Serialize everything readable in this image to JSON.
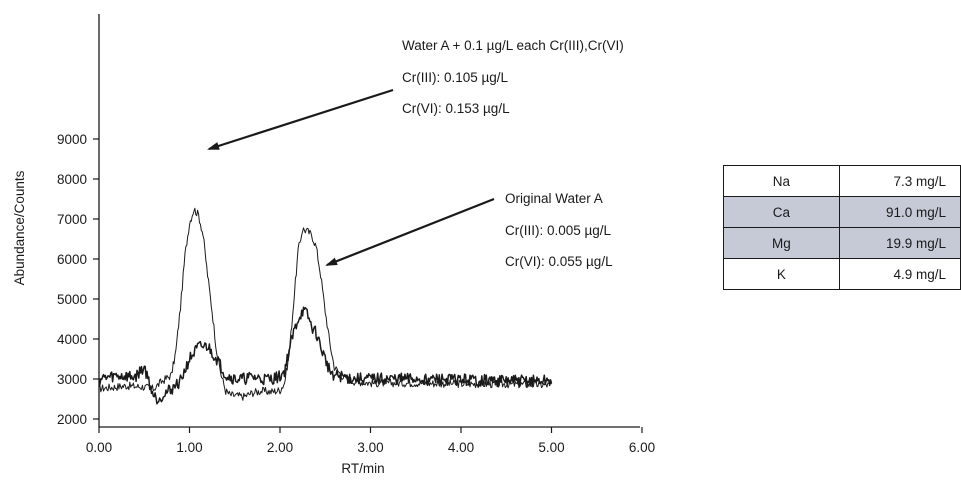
{
  "chart_data": {
    "type": "line",
    "xlabel": "RT/min",
    "ylabel": "Abundance/Counts",
    "xlim": [
      0,
      6
    ],
    "ylim": [
      1800,
      9600
    ],
    "xticks": [
      "0.00",
      "1.00",
      "2.00",
      "3.00",
      "4.00",
      "5.00",
      "6.00"
    ],
    "yticks": [
      "2000",
      "3000",
      "4000",
      "5000",
      "6000",
      "7000",
      "8000",
      "9000"
    ],
    "grid": false,
    "series": [
      {
        "key": "spiked",
        "x": [
          0.0,
          0.3,
          0.5,
          0.6,
          0.7,
          0.8,
          0.85,
          0.9,
          0.95,
          1.0,
          1.05,
          1.1,
          1.15,
          1.2,
          1.25,
          1.3,
          1.35,
          1.4,
          1.45,
          1.5,
          1.6,
          1.7,
          1.8,
          1.9,
          2.0,
          2.05,
          2.1,
          2.15,
          2.2,
          2.25,
          2.3,
          2.35,
          2.4,
          2.45,
          2.5,
          2.55,
          2.6,
          2.7,
          2.8,
          3.0,
          3.5,
          4.0,
          4.5,
          5.0
        ],
        "y": [
          2760,
          2830,
          2800,
          2750,
          2950,
          3100,
          3700,
          4800,
          6100,
          6900,
          7250,
          7100,
          6600,
          5600,
          4700,
          3700,
          3100,
          2700,
          2600,
          2590,
          2560,
          2660,
          2700,
          2680,
          2720,
          2900,
          3600,
          4900,
          6200,
          6750,
          6700,
          6600,
          6300,
          5600,
          4700,
          3900,
          3300,
          3050,
          2950,
          2900,
          2900,
          2880,
          2870,
          2850
        ]
      },
      {
        "key": "original",
        "x": [
          0.0,
          0.2,
          0.4,
          0.5,
          0.6,
          0.65,
          0.7,
          0.8,
          0.9,
          1.0,
          1.1,
          1.2,
          1.3,
          1.4,
          1.5,
          1.6,
          1.7,
          1.8,
          1.9,
          2.0,
          2.05,
          2.1,
          2.15,
          2.2,
          2.25,
          2.3,
          2.35,
          2.4,
          2.45,
          2.5,
          2.55,
          2.6,
          2.7,
          2.8,
          3.0,
          3.5,
          4.0,
          4.5,
          5.0
        ],
        "y": [
          3000,
          3080,
          3050,
          3300,
          2600,
          2490,
          2600,
          2750,
          2950,
          3500,
          3800,
          3820,
          3500,
          3100,
          3000,
          3000,
          3050,
          3000,
          3000,
          3060,
          3200,
          3700,
          4150,
          4500,
          4700,
          4620,
          4300,
          4150,
          3800,
          3500,
          3200,
          3100,
          3050,
          3000,
          3000,
          3000,
          2980,
          2950,
          2950
        ]
      }
    ],
    "annotations": {
      "spiked": [
        "Water A + 0.1 µg/L each Cr(III),Cr(VI)",
        "Cr(III): 0.105 µg/L",
        "Cr(VI): 0.153 µg/L"
      ],
      "original": [
        "Original Water A",
        "Cr(III): 0.005 µg/L",
        "Cr(VI): 0.055 µg/L"
      ]
    }
  },
  "table": {
    "rows": [
      {
        "element": "Na",
        "value": "7.3 mg/L",
        "shaded": false
      },
      {
        "element": "Ca",
        "value": "91.0 mg/L",
        "shaded": true
      },
      {
        "element": "Mg",
        "value": "19.9 mg/L",
        "shaded": true
      },
      {
        "element": "K",
        "value": "4.9 mg/L",
        "shaded": false
      }
    ]
  }
}
